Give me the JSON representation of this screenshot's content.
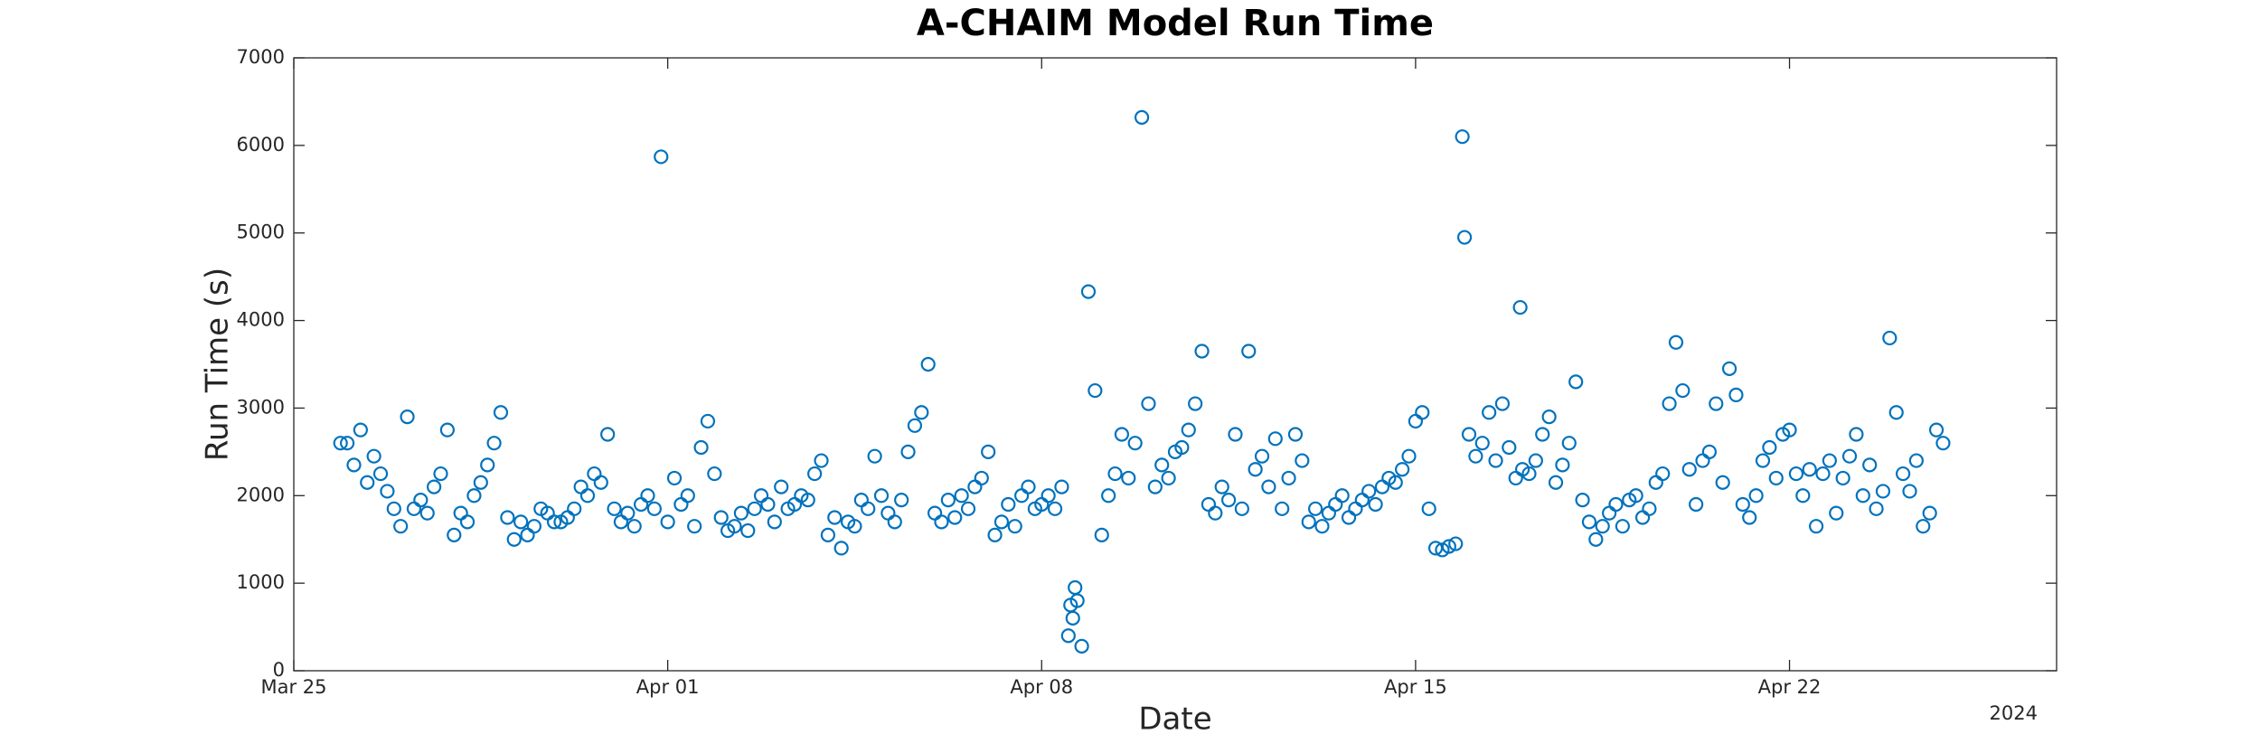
{
  "chart_data": {
    "type": "scatter",
    "title": "A-CHAIM Model Run Time",
    "x_label": "Date",
    "y_label": "Run Time (s)",
    "x_year_label": "2024",
    "color": "#0072bd",
    "xlim": [
      "2024-03-25T00:00",
      "2024-04-27T00:00"
    ],
    "xticks": [
      {
        "value": "2024-03-25T00:00",
        "label": "Mar 25"
      },
      {
        "value": "2024-04-01T00:00",
        "label": "Apr 01"
      },
      {
        "value": "2024-04-08T00:00",
        "label": "Apr 08"
      },
      {
        "value": "2024-04-15T00:00",
        "label": "Apr 15"
      },
      {
        "value": "2024-04-22T00:00",
        "label": "Apr 22"
      }
    ],
    "ylim": [
      0,
      7000
    ],
    "yticks": [
      0,
      1000,
      2000,
      3000,
      4000,
      5000,
      6000,
      7000
    ],
    "x": [
      "2024-03-25T21:00",
      "2024-03-26T00:00",
      "2024-03-26T03:00",
      "2024-03-26T06:00",
      "2024-03-26T09:00",
      "2024-03-26T12:00",
      "2024-03-26T15:00",
      "2024-03-26T18:00",
      "2024-03-26T21:00",
      "2024-03-27T00:00",
      "2024-03-27T03:00",
      "2024-03-27T06:00",
      "2024-03-27T09:00",
      "2024-03-27T12:00",
      "2024-03-27T15:00",
      "2024-03-27T18:00",
      "2024-03-27T21:00",
      "2024-03-28T00:00",
      "2024-03-28T03:00",
      "2024-03-28T06:00",
      "2024-03-28T09:00",
      "2024-03-28T12:00",
      "2024-03-28T15:00",
      "2024-03-28T18:00",
      "2024-03-28T21:00",
      "2024-03-29T00:00",
      "2024-03-29T03:00",
      "2024-03-29T06:00",
      "2024-03-29T09:00",
      "2024-03-29T12:00",
      "2024-03-29T15:00",
      "2024-03-29T18:00",
      "2024-03-29T21:00",
      "2024-03-30T00:00",
      "2024-03-30T03:00",
      "2024-03-30T06:00",
      "2024-03-30T09:00",
      "2024-03-30T12:00",
      "2024-03-30T15:00",
      "2024-03-30T18:00",
      "2024-03-30T21:00",
      "2024-03-31T00:00",
      "2024-03-31T03:00",
      "2024-03-31T06:00",
      "2024-03-31T09:00",
      "2024-03-31T12:00",
      "2024-03-31T15:00",
      "2024-03-31T18:00",
      "2024-03-31T21:00",
      "2024-04-01T00:00",
      "2024-04-01T03:00",
      "2024-04-01T06:00",
      "2024-04-01T09:00",
      "2024-04-01T12:00",
      "2024-04-01T15:00",
      "2024-04-01T18:00",
      "2024-04-01T21:00",
      "2024-04-02T00:00",
      "2024-04-02T03:00",
      "2024-04-02T06:00",
      "2024-04-02T09:00",
      "2024-04-02T12:00",
      "2024-04-02T15:00",
      "2024-04-02T18:00",
      "2024-04-02T21:00",
      "2024-04-03T00:00",
      "2024-04-03T03:00",
      "2024-04-03T06:00",
      "2024-04-03T09:00",
      "2024-04-03T12:00",
      "2024-04-03T15:00",
      "2024-04-03T18:00",
      "2024-04-03T21:00",
      "2024-04-04T00:00",
      "2024-04-04T03:00",
      "2024-04-04T06:00",
      "2024-04-04T09:00",
      "2024-04-04T12:00",
      "2024-04-04T15:00",
      "2024-04-04T18:00",
      "2024-04-04T21:00",
      "2024-04-05T00:00",
      "2024-04-05T03:00",
      "2024-04-05T06:00",
      "2024-04-05T09:00",
      "2024-04-05T12:00",
      "2024-04-05T15:00",
      "2024-04-05T18:00",
      "2024-04-05T21:00",
      "2024-04-06T00:00",
      "2024-04-06T03:00",
      "2024-04-06T06:00",
      "2024-04-06T09:00",
      "2024-04-06T12:00",
      "2024-04-06T15:00",
      "2024-04-06T18:00",
      "2024-04-06T21:00",
      "2024-04-07T00:00",
      "2024-04-07T03:00",
      "2024-04-07T06:00",
      "2024-04-07T09:00",
      "2024-04-07T12:00",
      "2024-04-07T15:00",
      "2024-04-07T18:00",
      "2024-04-07T21:00",
      "2024-04-08T00:00",
      "2024-04-08T03:00",
      "2024-04-08T06:00",
      "2024-04-08T09:00",
      "2024-04-08T12:00",
      "2024-04-08T13:00",
      "2024-04-08T14:00",
      "2024-04-08T15:00",
      "2024-04-08T16:00",
      "2024-04-08T18:00",
      "2024-04-08T21:00",
      "2024-04-09T00:00",
      "2024-04-09T03:00",
      "2024-04-09T06:00",
      "2024-04-09T09:00",
      "2024-04-09T12:00",
      "2024-04-09T15:00",
      "2024-04-09T18:00",
      "2024-04-09T21:00",
      "2024-04-10T00:00",
      "2024-04-10T03:00",
      "2024-04-10T06:00",
      "2024-04-10T09:00",
      "2024-04-10T12:00",
      "2024-04-10T15:00",
      "2024-04-10T18:00",
      "2024-04-10T21:00",
      "2024-04-11T00:00",
      "2024-04-11T03:00",
      "2024-04-11T06:00",
      "2024-04-11T09:00",
      "2024-04-11T12:00",
      "2024-04-11T15:00",
      "2024-04-11T18:00",
      "2024-04-11T21:00",
      "2024-04-12T00:00",
      "2024-04-12T03:00",
      "2024-04-12T06:00",
      "2024-04-12T09:00",
      "2024-04-12T12:00",
      "2024-04-12T15:00",
      "2024-04-12T18:00",
      "2024-04-12T21:00",
      "2024-04-13T00:00",
      "2024-04-13T03:00",
      "2024-04-13T06:00",
      "2024-04-13T09:00",
      "2024-04-13T12:00",
      "2024-04-13T15:00",
      "2024-04-13T18:00",
      "2024-04-13T21:00",
      "2024-04-14T00:00",
      "2024-04-14T03:00",
      "2024-04-14T06:00",
      "2024-04-14T09:00",
      "2024-04-14T12:00",
      "2024-04-14T15:00",
      "2024-04-14T18:00",
      "2024-04-14T21:00",
      "2024-04-15T00:00",
      "2024-04-15T03:00",
      "2024-04-15T06:00",
      "2024-04-15T09:00",
      "2024-04-15T12:00",
      "2024-04-15T15:00",
      "2024-04-15T18:00",
      "2024-04-15T21:00",
      "2024-04-15T22:00",
      "2024-04-16T00:00",
      "2024-04-16T03:00",
      "2024-04-16T06:00",
      "2024-04-16T09:00",
      "2024-04-16T12:00",
      "2024-04-16T15:00",
      "2024-04-16T18:00",
      "2024-04-16T21:00",
      "2024-04-16T23:00",
      "2024-04-17T00:00",
      "2024-04-17T03:00",
      "2024-04-17T06:00",
      "2024-04-17T09:00",
      "2024-04-17T12:00",
      "2024-04-17T15:00",
      "2024-04-17T18:00",
      "2024-04-17T21:00",
      "2024-04-18T00:00",
      "2024-04-18T03:00",
      "2024-04-18T06:00",
      "2024-04-18T09:00",
      "2024-04-18T12:00",
      "2024-04-18T15:00",
      "2024-04-18T18:00",
      "2024-04-18T21:00",
      "2024-04-19T00:00",
      "2024-04-19T03:00",
      "2024-04-19T06:00",
      "2024-04-19T09:00",
      "2024-04-19T12:00",
      "2024-04-19T15:00",
      "2024-04-19T18:00",
      "2024-04-19T21:00",
      "2024-04-20T00:00",
      "2024-04-20T03:00",
      "2024-04-20T06:00",
      "2024-04-20T09:00",
      "2024-04-20T12:00",
      "2024-04-20T15:00",
      "2024-04-20T18:00",
      "2024-04-20T21:00",
      "2024-04-21T00:00",
      "2024-04-21T03:00",
      "2024-04-21T06:00",
      "2024-04-21T09:00",
      "2024-04-21T12:00",
      "2024-04-21T15:00",
      "2024-04-21T18:00",
      "2024-04-21T21:00",
      "2024-04-22T00:00",
      "2024-04-22T03:00",
      "2024-04-22T06:00",
      "2024-04-22T09:00",
      "2024-04-22T12:00",
      "2024-04-22T15:00",
      "2024-04-22T18:00",
      "2024-04-22T21:00",
      "2024-04-23T00:00",
      "2024-04-23T03:00",
      "2024-04-23T06:00",
      "2024-04-23T09:00",
      "2024-04-23T12:00",
      "2024-04-23T15:00",
      "2024-04-23T18:00",
      "2024-04-23T21:00",
      "2024-04-24T00:00",
      "2024-04-24T03:00",
      "2024-04-24T06:00",
      "2024-04-24T09:00",
      "2024-04-24T12:00",
      "2024-04-24T15:00",
      "2024-04-24T18:00",
      "2024-04-24T21:00"
    ],
    "values": [
      2600,
      2600,
      2350,
      2750,
      2150,
      2450,
      2250,
      2050,
      1850,
      1650,
      2900,
      1850,
      1950,
      1800,
      2100,
      2250,
      2750,
      1550,
      1800,
      1700,
      2000,
      2150,
      2350,
      2600,
      2950,
      1750,
      1500,
      1700,
      1550,
      1650,
      1850,
      1800,
      1700,
      1700,
      1750,
      1850,
      2100,
      2000,
      2250,
      2150,
      2700,
      1850,
      1700,
      1800,
      1650,
      1900,
      2000,
      1850,
      5870,
      1700,
      2200,
      1900,
      2000,
      1650,
      2550,
      2850,
      2250,
      1750,
      1600,
      1650,
      1800,
      1600,
      1850,
      2000,
      1900,
      1700,
      2100,
      1850,
      1900,
      2000,
      1950,
      2250,
      2400,
      1550,
      1750,
      1400,
      1700,
      1650,
      1950,
      1850,
      2450,
      2000,
      1800,
      1700,
      1950,
      2500,
      2800,
      2950,
      3500,
      1800,
      1700,
      1950,
      1750,
      2000,
      1850,
      2100,
      2200,
      2500,
      1550,
      1700,
      1900,
      1650,
      2000,
      2100,
      1850,
      1900,
      2000,
      1850,
      2100,
      400,
      750,
      600,
      950,
      800,
      280,
      4330,
      3200,
      1550,
      2000,
      2250,
      2700,
      2200,
      2600,
      6320,
      3050,
      2100,
      2350,
      2200,
      2500,
      2550,
      2750,
      3050,
      3650,
      1900,
      1800,
      2100,
      1950,
      2700,
      1850,
      3650,
      2300,
      2450,
      2100,
      2650,
      1850,
      2200,
      2700,
      2400,
      1700,
      1850,
      1650,
      1800,
      1900,
      2000,
      1750,
      1850,
      1950,
      2050,
      1900,
      2100,
      2200,
      2150,
      2300,
      2450,
      2850,
      2950,
      1850,
      1400,
      1380,
      1420,
      1450,
      6100,
      4950,
      2700,
      2450,
      2600,
      2950,
      2400,
      3050,
      2550,
      2200,
      4150,
      2300,
      2250,
      2400,
      2700,
      2900,
      2150,
      2350,
      2600,
      3300,
      1950,
      1700,
      1500,
      1650,
      1800,
      1900,
      1650,
      1950,
      2000,
      1750,
      1850,
      2150,
      2250,
      3050,
      3750,
      3200,
      2300,
      1900,
      2400,
      2500,
      3050,
      2150,
      3450,
      3150,
      1900,
      1750,
      2000,
      2400,
      2550,
      2200,
      2700,
      2750,
      2250,
      2000,
      2300,
      1650,
      2250,
      2400,
      1800,
      2200,
      2450,
      2700,
      2000,
      2350,
      1850,
      2050,
      3800,
      2950,
      2250,
      2050,
      2400,
      1650,
      1800,
      2750,
      2600
    ]
  }
}
